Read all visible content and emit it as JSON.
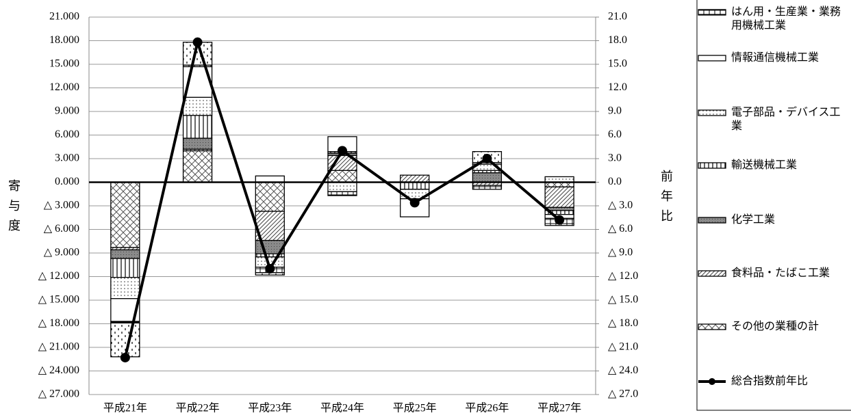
{
  "chart_data": {
    "type": "stacked-bar-line",
    "categories": [
      "平成21年",
      "平成22年",
      "平成23年",
      "平成24年",
      "平成25年",
      "平成26年",
      "平成27年"
    ],
    "ylabel": "寄与度",
    "y2label": "前年比",
    "ylim": [
      -27,
      21
    ],
    "yticks": [
      {
        "value": 21,
        "label": "21.000"
      },
      {
        "value": 18,
        "label": "18.000"
      },
      {
        "value": 15,
        "label": "15.000"
      },
      {
        "value": 12,
        "label": "12.000"
      },
      {
        "value": 9,
        "label": "9.000"
      },
      {
        "value": 6,
        "label": "6.000"
      },
      {
        "value": 3,
        "label": "3.000"
      },
      {
        "value": 0,
        "label": "0.000"
      },
      {
        "value": -3,
        "label": "△ 3.000"
      },
      {
        "value": -6,
        "label": "△ 6.000"
      },
      {
        "value": -9,
        "label": "△ 9.000"
      },
      {
        "value": -12,
        "label": "△ 12.000"
      },
      {
        "value": -15,
        "label": "△ 15.000"
      },
      {
        "value": -18,
        "label": "△ 18.000"
      },
      {
        "value": -21,
        "label": "△ 21.000"
      },
      {
        "value": -24,
        "label": "△ 24.000"
      },
      {
        "value": -27,
        "label": "△ 27.000"
      }
    ],
    "y2lim": [
      -27,
      21
    ],
    "y2ticks": [
      {
        "value": 21,
        "label": "21.0"
      },
      {
        "value": 18,
        "label": "18.0"
      },
      {
        "value": 15,
        "label": "15.0"
      },
      {
        "value": 12,
        "label": "12.0"
      },
      {
        "value": 9,
        "label": "9.0"
      },
      {
        "value": 6,
        "label": "6.0"
      },
      {
        "value": 3,
        "label": "3.0"
      },
      {
        "value": 0,
        "label": "0.0"
      },
      {
        "value": -3,
        "label": "△ 3.0"
      },
      {
        "value": -6,
        "label": "△ 6.0"
      },
      {
        "value": -9,
        "label": "△ 9.0"
      },
      {
        "value": -12,
        "label": "△ 12.0"
      },
      {
        "value": -15,
        "label": "△ 15.0"
      },
      {
        "value": -18,
        "label": "△ 18.0"
      },
      {
        "value": -21,
        "label": "△ 21.0"
      },
      {
        "value": -24,
        "label": "△ 24.0"
      },
      {
        "value": -27,
        "label": "△ 27.0"
      }
    ],
    "grid": true,
    "series": [
      {
        "name": "その他の業種の計",
        "pattern": "cross",
        "values": [
          -8.3,
          4.0,
          -3.7,
          1.5,
          0,
          0,
          -0.6
        ]
      },
      {
        "name": "食料品・たばこ工業",
        "pattern": "diag",
        "values": [
          -0.3,
          0.2,
          -3.7,
          1.9,
          0.9,
          -0.4,
          -2.6
        ]
      },
      {
        "name": "化学工業",
        "pattern": "gray",
        "values": [
          -1.1,
          1.4,
          -1.7,
          0.3,
          0,
          1.2,
          -0.4
        ]
      },
      {
        "name": "輸送機械工業",
        "pattern": "vert",
        "values": [
          -2.4,
          2.9,
          -0.4,
          0.2,
          -0.9,
          0.3,
          -0.5
        ]
      },
      {
        "name": "電子部品・デバイス工業",
        "pattern": "dots",
        "values": [
          -2.7,
          2.3,
          -1.3,
          -1.2,
          -1.2,
          0.8,
          0.7
        ]
      },
      {
        "name": "情報通信機械工業",
        "pattern": "white",
        "values": [
          -2.9,
          3.9,
          0.8,
          1.9,
          -2.3,
          0.2,
          -0.5
        ]
      },
      {
        "name": "はん用・生産業・業務用機械工業",
        "pattern": "brick",
        "values": [
          -0.2,
          0.2,
          -0.7,
          -0.5,
          0,
          -0.5,
          -0.9
        ]
      },
      {
        "pattern": "dash",
        "values": [
          -4.3,
          2.9,
          -0.3,
          0,
          0,
          1.4,
          0
        ]
      },
      {
        "name": "総合指数前年比",
        "type": "line",
        "axis": "y2",
        "color": "#000000",
        "values": [
          -22.3,
          17.8,
          -11.0,
          4.0,
          -2.6,
          3.0,
          -4.8
        ]
      }
    ]
  }
}
